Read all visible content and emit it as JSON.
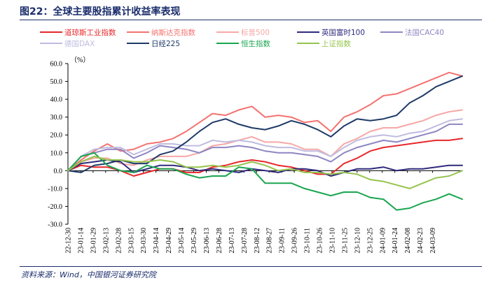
{
  "header": {
    "title": "图22：全球主要股指累计收益率表现"
  },
  "footer": {
    "source": "资料来源：Wind，中国银河证券研究院"
  },
  "chart_data": {
    "type": "line",
    "unit_label": "（%）",
    "ylim": [
      -30,
      60
    ],
    "yticks": [
      -30,
      -20,
      -10,
      0,
      10,
      20,
      30,
      40,
      50,
      60
    ],
    "ytick_labels": [
      "-30.0",
      "-20.0",
      "-10.0",
      "0.0",
      "10.0",
      "20.0",
      "30.0",
      "40.0",
      "50.0",
      "60.0"
    ],
    "grid": false,
    "legend_position": "top",
    "x": [
      "22-12-30",
      "23-01-14",
      "23-01-29",
      "23-02-13",
      "23-02-28",
      "23-03-15",
      "23-03-30",
      "23-04-14",
      "23-04-29",
      "23-05-14",
      "23-05-29",
      "23-06-13",
      "23-06-28",
      "23-07-13",
      "23-07-28",
      "23-08-12",
      "23-08-27",
      "23-09-11",
      "23-09-26",
      "23-10-11",
      "23-10-26",
      "23-11-10",
      "23-11-25",
      "23-12-10",
      "23-12-25",
      "24-01-09",
      "24-01-24",
      "24-02-08",
      "24-02-23",
      "24-03-09",
      "24-03-20"
    ],
    "xtick_labels": [
      "22-12-30",
      "23-01-14",
      "23-01-29",
      "23-02-13",
      "23-02-28",
      "23-03-15",
      "23-03-30",
      "23-04-14",
      "23-04-29",
      "23-05-14",
      "23-05-29",
      "23-06-13",
      "23-06-28",
      "23-07-13",
      "23-07-28",
      "23-08-12",
      "23-08-27",
      "23-09-11",
      "23-09-26",
      "23-10-11",
      "23-10-26",
      "23-11-10",
      "23-11-25",
      "23-12-10",
      "23-12-25",
      "24-01-09",
      "24-01-24",
      "24-02-08",
      "24-02-23",
      "24-03-09"
    ],
    "series": [
      {
        "name": "道琼斯工业指数",
        "color": "#e8272a",
        "values": [
          0,
          3,
          2,
          2,
          0,
          -3,
          -1,
          1,
          1,
          -1,
          -1,
          2,
          3,
          5,
          6,
          5,
          3,
          2,
          0,
          -2,
          -2,
          4,
          7,
          11,
          13,
          14,
          15,
          16,
          17,
          17,
          18
        ]
      },
      {
        "name": "纳斯达克指数",
        "color": "#f4726f",
        "values": [
          0,
          6,
          11,
          15,
          11,
          12,
          15,
          16,
          18,
          22,
          27,
          32,
          31,
          34,
          36,
          30,
          31,
          30,
          27,
          28,
          22,
          30,
          33,
          37,
          42,
          43,
          46,
          49,
          52,
          55,
          53
        ]
      },
      {
        "name": "标普500",
        "color": "#f6a8a6",
        "values": [
          0,
          5,
          7,
          7,
          4,
          3,
          6,
          8,
          8,
          8,
          10,
          14,
          15,
          17,
          19,
          16,
          16,
          15,
          12,
          12,
          8,
          15,
          18,
          22,
          24,
          24,
          26,
          28,
          31,
          33,
          34
        ]
      },
      {
        "name": "英国富时100",
        "color": "#2e2a7c",
        "values": [
          0,
          4,
          5,
          6,
          5,
          -1,
          1,
          3,
          3,
          2,
          0,
          1,
          0,
          -1,
          1,
          0,
          -1,
          1,
          1,
          0,
          -3,
          -1,
          1,
          1,
          2,
          0,
          1,
          1,
          2,
          3,
          3
        ]
      },
      {
        "name": "法国CAC40",
        "color": "#8e86c2",
        "values": [
          0,
          8,
          10,
          12,
          12,
          7,
          10,
          14,
          13,
          12,
          10,
          13,
          13,
          14,
          13,
          11,
          10,
          10,
          9,
          8,
          5,
          10,
          13,
          15,
          17,
          16,
          18,
          20,
          22,
          26,
          26
        ]
      },
      {
        "name": "德国DAX",
        "color": "#c0bce0",
        "values": [
          0,
          8,
          12,
          13,
          13,
          9,
          12,
          15,
          15,
          14,
          14,
          17,
          16,
          17,
          16,
          14,
          13,
          13,
          11,
          11,
          8,
          13,
          17,
          19,
          20,
          19,
          21,
          22,
          25,
          28,
          29
        ]
      },
      {
        "name": "日经225",
        "color": "#1f3a68",
        "values": [
          0,
          -1,
          3,
          4,
          6,
          4,
          4,
          9,
          11,
          16,
          22,
          27,
          29,
          26,
          24,
          23,
          25,
          28,
          26,
          23,
          19,
          25,
          29,
          28,
          29,
          31,
          38,
          42,
          47,
          50,
          53
        ]
      },
      {
        "name": "恒生指数",
        "color": "#1aa550",
        "values": [
          0,
          8,
          10,
          3,
          0,
          -1,
          3,
          1,
          1,
          -2,
          -4,
          -3,
          -3,
          2,
          1,
          -7,
          -7,
          -7,
          -10,
          -12,
          -14,
          -12,
          -12,
          -15,
          -16,
          -22,
          -21,
          -18,
          -16,
          -13,
          -16
        ]
      },
      {
        "name": "上证指数",
        "color": "#95c44d",
        "values": [
          0,
          5,
          8,
          6,
          6,
          5,
          5,
          6,
          5,
          2,
          2,
          3,
          2,
          3,
          5,
          3,
          0,
          1,
          -1,
          -1,
          -2,
          -1,
          -2,
          -5,
          -6,
          -8,
          -10,
          -7,
          -4,
          -3,
          0
        ]
      }
    ]
  }
}
